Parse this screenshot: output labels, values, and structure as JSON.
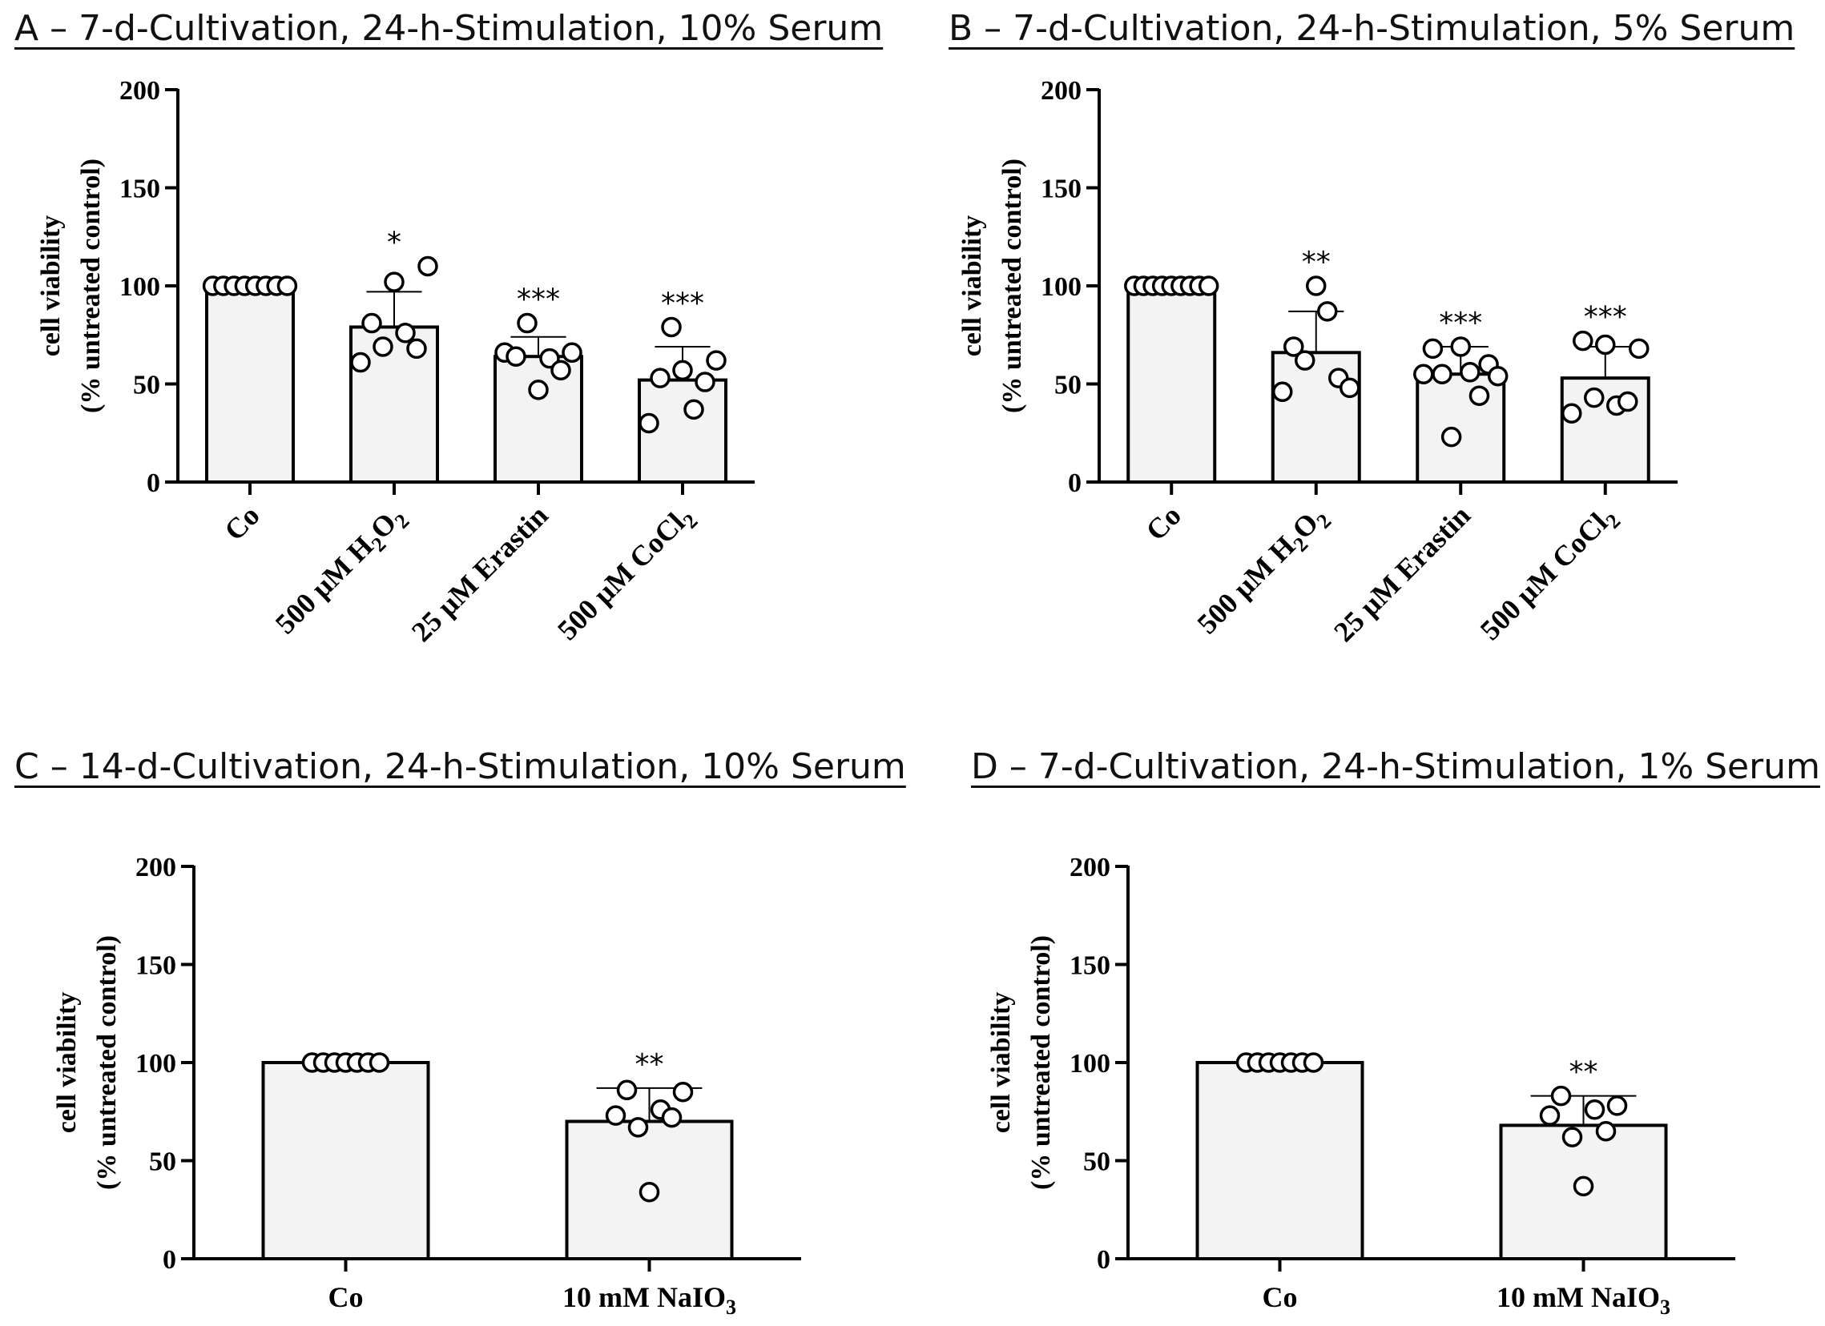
{
  "colors": {
    "bar_fill": "#f3f3f3",
    "stroke": "#000000",
    "marker_fill": "#ffffff"
  },
  "chart_data": [
    {
      "type": "bar",
      "panel": "A",
      "title": "A – 7-d-Cultivation, 24-h-Stimulation, 10% Serum",
      "ylabel": "cell viability",
      "ylabel2": "(% untreated control)",
      "ylim": [
        0,
        200
      ],
      "yticks": [
        "0",
        "50",
        "100",
        "150",
        "200"
      ],
      "categories": [
        "Co",
        "500 µM H2O2",
        "25 µM Erastin",
        "500 µM CoCl2"
      ],
      "values": [
        100,
        79,
        64,
        52
      ],
      "error_sd": [
        0,
        18,
        10,
        17
      ],
      "significance": [
        "",
        "*",
        "***",
        "***"
      ],
      "points": [
        [
          100,
          100,
          100,
          100,
          100,
          100,
          100,
          100
        ],
        [
          61,
          81,
          69,
          102,
          76,
          68,
          110
        ],
        [
          66,
          64,
          81,
          47,
          63,
          57,
          66
        ],
        [
          30,
          53,
          79,
          57,
          37,
          51,
          62
        ]
      ]
    },
    {
      "type": "bar",
      "panel": "B",
      "title": "B – 7-d-Cultivation, 24-h-Stimulation, 5% Serum",
      "ylabel": "cell viability",
      "ylabel2": "(% untreated control)",
      "ylim": [
        0,
        200
      ],
      "yticks": [
        "0",
        "50",
        "100",
        "150",
        "200"
      ],
      "categories": [
        "Co",
        "500 µM H2O2",
        "25 µM Erastin",
        "500 µM CoCl2"
      ],
      "values": [
        100,
        66,
        55,
        53
      ],
      "error_sd": [
        0,
        21,
        14,
        16
      ],
      "significance": [
        "",
        "**",
        "***",
        "***"
      ],
      "points": [
        [
          100,
          100,
          100,
          100,
          100,
          100,
          100,
          100,
          100
        ],
        [
          46,
          69,
          62,
          100,
          87,
          53,
          48
        ],
        [
          55,
          68,
          55,
          23,
          69,
          56,
          44,
          60,
          54
        ],
        [
          35,
          72,
          43,
          70,
          39,
          41,
          68
        ]
      ]
    },
    {
      "type": "bar",
      "panel": "C",
      "title": "C – 14-d-Cultivation, 24-h-Stimulation, 10% Serum",
      "ylabel": "cell viability",
      "ylabel2": "(% untreated control)",
      "ylim": [
        0,
        200
      ],
      "yticks": [
        "0",
        "50",
        "100",
        "150",
        "200"
      ],
      "categories": [
        "Co",
        "10 mM NaIO3"
      ],
      "values": [
        100,
        70
      ],
      "error_sd": [
        0,
        17
      ],
      "significance": [
        "",
        "**"
      ],
      "points": [
        [
          100,
          100,
          100,
          100,
          100,
          100,
          100
        ],
        [
          73,
          86,
          67,
          34,
          76,
          72,
          85
        ]
      ]
    },
    {
      "type": "bar",
      "panel": "D",
      "title": "D – 7-d-Cultivation, 24-h-Stimulation, 1% Serum",
      "ylabel": "cell viability",
      "ylabel2": "(% untreated control)",
      "ylim": [
        0,
        200
      ],
      "yticks": [
        "0",
        "50",
        "100",
        "150",
        "200"
      ],
      "categories": [
        "Co",
        "10 mM NaIO3"
      ],
      "values": [
        100,
        68
      ],
      "error_sd": [
        0,
        15
      ],
      "significance": [
        "",
        "**"
      ],
      "points": [
        [
          100,
          100,
          100,
          100,
          100,
          100,
          100
        ],
        [
          73,
          83,
          62,
          37,
          76,
          65,
          78
        ]
      ]
    }
  ]
}
